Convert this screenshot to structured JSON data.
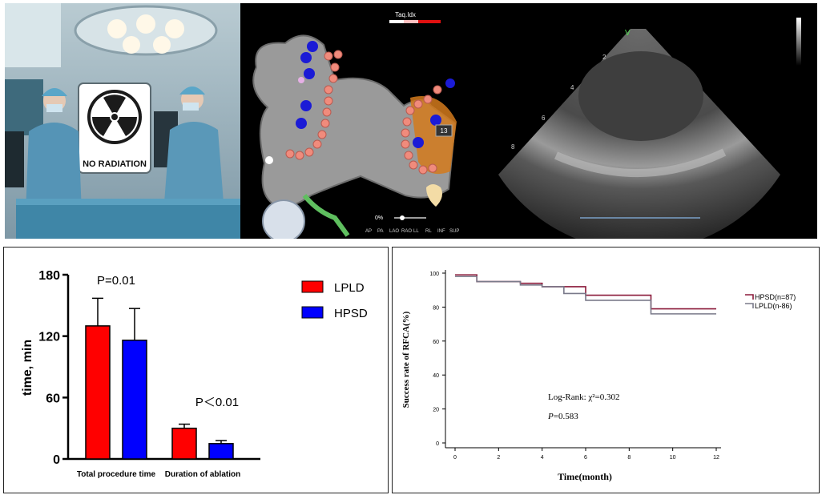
{
  "images": {
    "operating_room": {
      "sign_label": "NO RADIATION",
      "icon": "radiation-icon"
    },
    "mapping": {
      "legend_label": "Taq.Idx",
      "percent_label": "0%",
      "marker_label": "13",
      "views": [
        "AP",
        "PA",
        "LAO",
        "RAO",
        "LL",
        "RL",
        "INF",
        "SUP"
      ]
    },
    "echo": {
      "marker_v": "V",
      "depth_labels": [
        "2",
        "4",
        "6",
        "8"
      ]
    }
  },
  "chart_data": [
    {
      "type": "bar",
      "categories": [
        "Total procedure time",
        "Duration of ablation"
      ],
      "series": [
        {
          "name": "LPLD",
          "values": [
            130,
            30
          ],
          "errors": [
            27,
            4
          ],
          "color": "#ff0000"
        },
        {
          "name": "HPSD",
          "values": [
            116,
            15
          ],
          "errors": [
            31,
            3
          ],
          "color": "#0000ff"
        }
      ],
      "ylabel": "time, min",
      "ylim": [
        0,
        180
      ],
      "yticks": [
        0,
        60,
        120,
        180
      ],
      "annotations": [
        "P=0.01",
        "P＜0.01"
      ],
      "legend_placement": "top-right"
    },
    {
      "type": "line",
      "step": true,
      "xlabel": "Time(month)",
      "ylabel": "Success rate of RFCA(%)",
      "xlim": [
        0,
        12
      ],
      "ylim": [
        0,
        100
      ],
      "xticks": [
        0,
        2,
        4,
        6,
        8,
        10,
        12
      ],
      "yticks": [
        0,
        20,
        40,
        60,
        80,
        100
      ],
      "series": [
        {
          "name": "HPSD(n=87)",
          "color": "#8b1a3a",
          "x": [
            0,
            1,
            3,
            4,
            6,
            9,
            12
          ],
          "y": [
            99,
            95,
            94,
            92,
            87,
            79,
            79
          ]
        },
        {
          "name": "LPLD(n-86)",
          "color": "#7a7a8a",
          "x": [
            0,
            1,
            3,
            4,
            5,
            6,
            9,
            12
          ],
          "y": [
            98,
            95,
            93,
            92,
            88,
            84,
            76,
            76
          ]
        }
      ],
      "legend_placement": "right",
      "annotations": [
        "Log-Rank: χ²=0.302",
        "P=0.583"
      ]
    }
  ]
}
